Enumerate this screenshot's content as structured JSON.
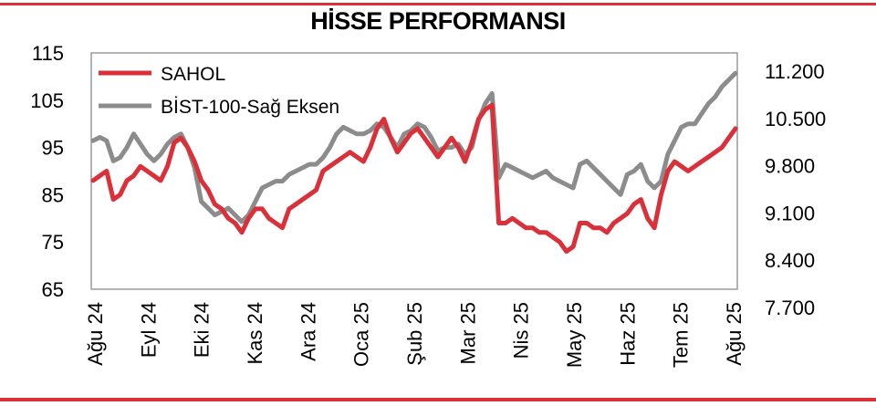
{
  "title": "HİSSE PERFORMANSI",
  "colors": {
    "rule": "#d9303a",
    "sahol": "#d9303a",
    "bist": "#8c8c8c"
  },
  "chart_data": {
    "type": "line",
    "title": "HİSSE PERFORMANSI",
    "y_left": {
      "ticks": [
        "115",
        "105",
        "95",
        "85",
        "75",
        "65"
      ],
      "min": 65,
      "max": 115
    },
    "y_right": {
      "ticks": [
        "11.200",
        "10.500",
        "9.800",
        "9.100",
        "8.400",
        "7.700"
      ],
      "min": 7700,
      "max": 11200
    },
    "x_tick_labels": [
      "Ağu 24",
      "Eyl 24",
      "Eki 24",
      "Kas 24",
      "Ara 24",
      "Oca 25",
      "Şub 25",
      "Mar 25",
      "Nis 25",
      "May 25",
      "Haz 25",
      "Tem 25",
      "Ağu 25"
    ],
    "legend": {
      "position": "top-left",
      "entries": [
        "SAHOL",
        "BİST-100-Sağ Eksen"
      ]
    },
    "series": [
      {
        "name": "SAHOL",
        "axis": "left",
        "values": [
          88,
          89,
          90,
          84,
          85,
          88,
          89,
          91,
          90,
          89,
          88,
          91,
          96,
          97,
          95,
          92,
          88,
          86,
          83,
          82,
          80,
          79,
          77,
          80,
          82,
          82,
          80,
          79,
          78,
          82,
          83,
          84,
          85,
          86,
          90,
          91,
          92,
          93,
          94,
          93,
          92,
          95,
          99,
          101,
          97,
          94,
          96,
          98,
          99,
          97,
          95,
          93,
          95,
          97,
          95,
          92,
          96,
          101,
          103,
          104,
          79,
          79,
          80,
          79,
          78,
          78,
          77,
          77,
          76,
          75,
          73,
          74,
          79,
          79,
          78,
          78,
          77,
          79,
          80,
          81,
          83,
          84,
          80,
          78,
          85,
          90,
          92,
          91,
          90,
          91,
          92,
          93,
          94,
          95,
          97,
          99
        ]
      },
      {
        "name": "BİST-100-Sağ Eksen",
        "axis": "right",
        "values": [
          9900,
          9950,
          9900,
          9600,
          9650,
          9800,
          10000,
          9850,
          9700,
          9600,
          9700,
          9850,
          9950,
          10000,
          9800,
          9500,
          9000,
          8900,
          8800,
          8850,
          8900,
          8800,
          8700,
          8800,
          9000,
          9200,
          9250,
          9300,
          9300,
          9400,
          9450,
          9500,
          9550,
          9550,
          9650,
          9800,
          10000,
          10100,
          10050,
          10000,
          10000,
          10050,
          10150,
          10100,
          9950,
          9800,
          10000,
          10050,
          10150,
          10100,
          9950,
          9750,
          9800,
          9800,
          9850,
          9700,
          9800,
          10200,
          10450,
          10600,
          9350,
          9550,
          9500,
          9450,
          9400,
          9350,
          9400,
          9450,
          9350,
          9300,
          9250,
          9200,
          9550,
          9600,
          9500,
          9400,
          9300,
          9200,
          9100,
          9400,
          9450,
          9550,
          9300,
          9200,
          9300,
          9700,
          9900,
          10100,
          10150,
          10150,
          10300,
          10450,
          10550,
          10700,
          10800,
          10900
        ]
      }
    ]
  }
}
